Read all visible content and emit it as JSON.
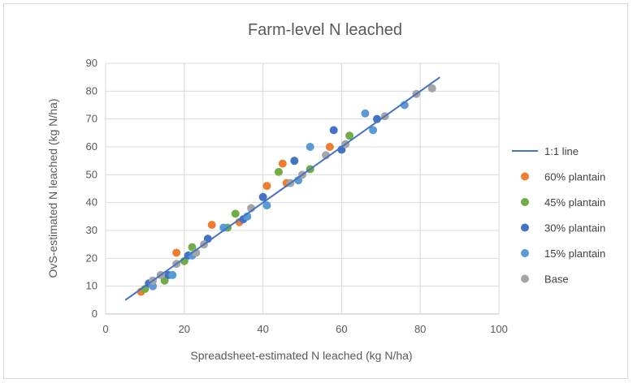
{
  "chart_data": {
    "type": "scatter",
    "title": "Farm-level N leached",
    "xlabel": "Spreadsheet-estimated N leached (kg N/ha)",
    "ylabel": "OvS-estimated N leached (kg N/ha)",
    "xlim": [
      0,
      100
    ],
    "ylim": [
      0,
      90
    ],
    "x_ticks": [
      "0",
      "20",
      "40",
      "60",
      "80",
      "100"
    ],
    "y_ticks": [
      "0",
      "10",
      "20",
      "30",
      "40",
      "50",
      "60",
      "70",
      "80",
      "90"
    ],
    "grid": true,
    "legend_position": "right",
    "line": {
      "name": "1:1 line",
      "x": [
        5,
        85
      ],
      "y": [
        5,
        85
      ],
      "color": "#4472c4"
    },
    "series": [
      {
        "name": "60% plantain",
        "color": "#ed7d31",
        "points": [
          [
            9,
            8
          ],
          [
            18,
            22
          ],
          [
            27,
            32
          ],
          [
            34,
            33
          ],
          [
            41,
            46
          ],
          [
            45,
            54
          ],
          [
            46,
            47
          ],
          [
            57,
            60
          ]
        ]
      },
      {
        "name": "45% plantain",
        "color": "#70ad47",
        "points": [
          [
            10,
            9
          ],
          [
            15,
            12
          ],
          [
            20,
            19
          ],
          [
            22,
            24
          ],
          [
            31,
            31
          ],
          [
            33,
            36
          ],
          [
            44,
            51
          ],
          [
            52,
            52
          ],
          [
            62,
            64
          ]
        ]
      },
      {
        "name": "30% plantain",
        "color": "#4472c4",
        "points": [
          [
            11,
            11
          ],
          [
            16,
            14
          ],
          [
            21,
            21
          ],
          [
            26,
            27
          ],
          [
            35,
            34
          ],
          [
            40,
            42
          ],
          [
            48,
            55
          ],
          [
            58,
            66
          ],
          [
            60,
            59
          ],
          [
            69,
            70
          ]
        ]
      },
      {
        "name": "15% plantain",
        "color": "#5b9bd5",
        "points": [
          [
            12,
            10
          ],
          [
            17,
            14
          ],
          [
            22,
            21
          ],
          [
            30,
            31
          ],
          [
            36,
            35
          ],
          [
            41,
            39
          ],
          [
            49,
            48
          ],
          [
            52,
            60
          ],
          [
            66,
            72
          ],
          [
            68,
            66
          ],
          [
            76,
            75
          ]
        ]
      },
      {
        "name": "Base",
        "color": "#a5a5a5",
        "points": [
          [
            12,
            12
          ],
          [
            14,
            14
          ],
          [
            18,
            18
          ],
          [
            23,
            22
          ],
          [
            25,
            25
          ],
          [
            37,
            38
          ],
          [
            47,
            47
          ],
          [
            50,
            50
          ],
          [
            56,
            57
          ],
          [
            61,
            61
          ],
          [
            71,
            71
          ],
          [
            79,
            79
          ],
          [
            83,
            81
          ]
        ]
      }
    ],
    "legend": [
      {
        "name": "1:1 line",
        "color": "#4472c4",
        "kind": "line"
      },
      {
        "name": "60% plantain",
        "color": "#ed7d31",
        "kind": "marker"
      },
      {
        "name": "45% plantain",
        "color": "#70ad47",
        "kind": "marker"
      },
      {
        "name": "30% plantain",
        "color": "#4472c4",
        "kind": "marker"
      },
      {
        "name": "15% plantain",
        "color": "#5b9bd5",
        "kind": "marker"
      },
      {
        "name": "Base",
        "color": "#a5a5a5",
        "kind": "marker"
      }
    ]
  }
}
